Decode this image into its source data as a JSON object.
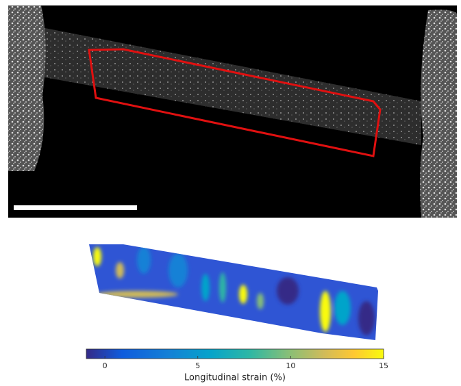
{
  "colorbar": {
    "label": "Longitudinal strain (%)",
    "lim": [
      -1,
      15
    ],
    "ticks": [
      0,
      5,
      10,
      15
    ]
  }
}
